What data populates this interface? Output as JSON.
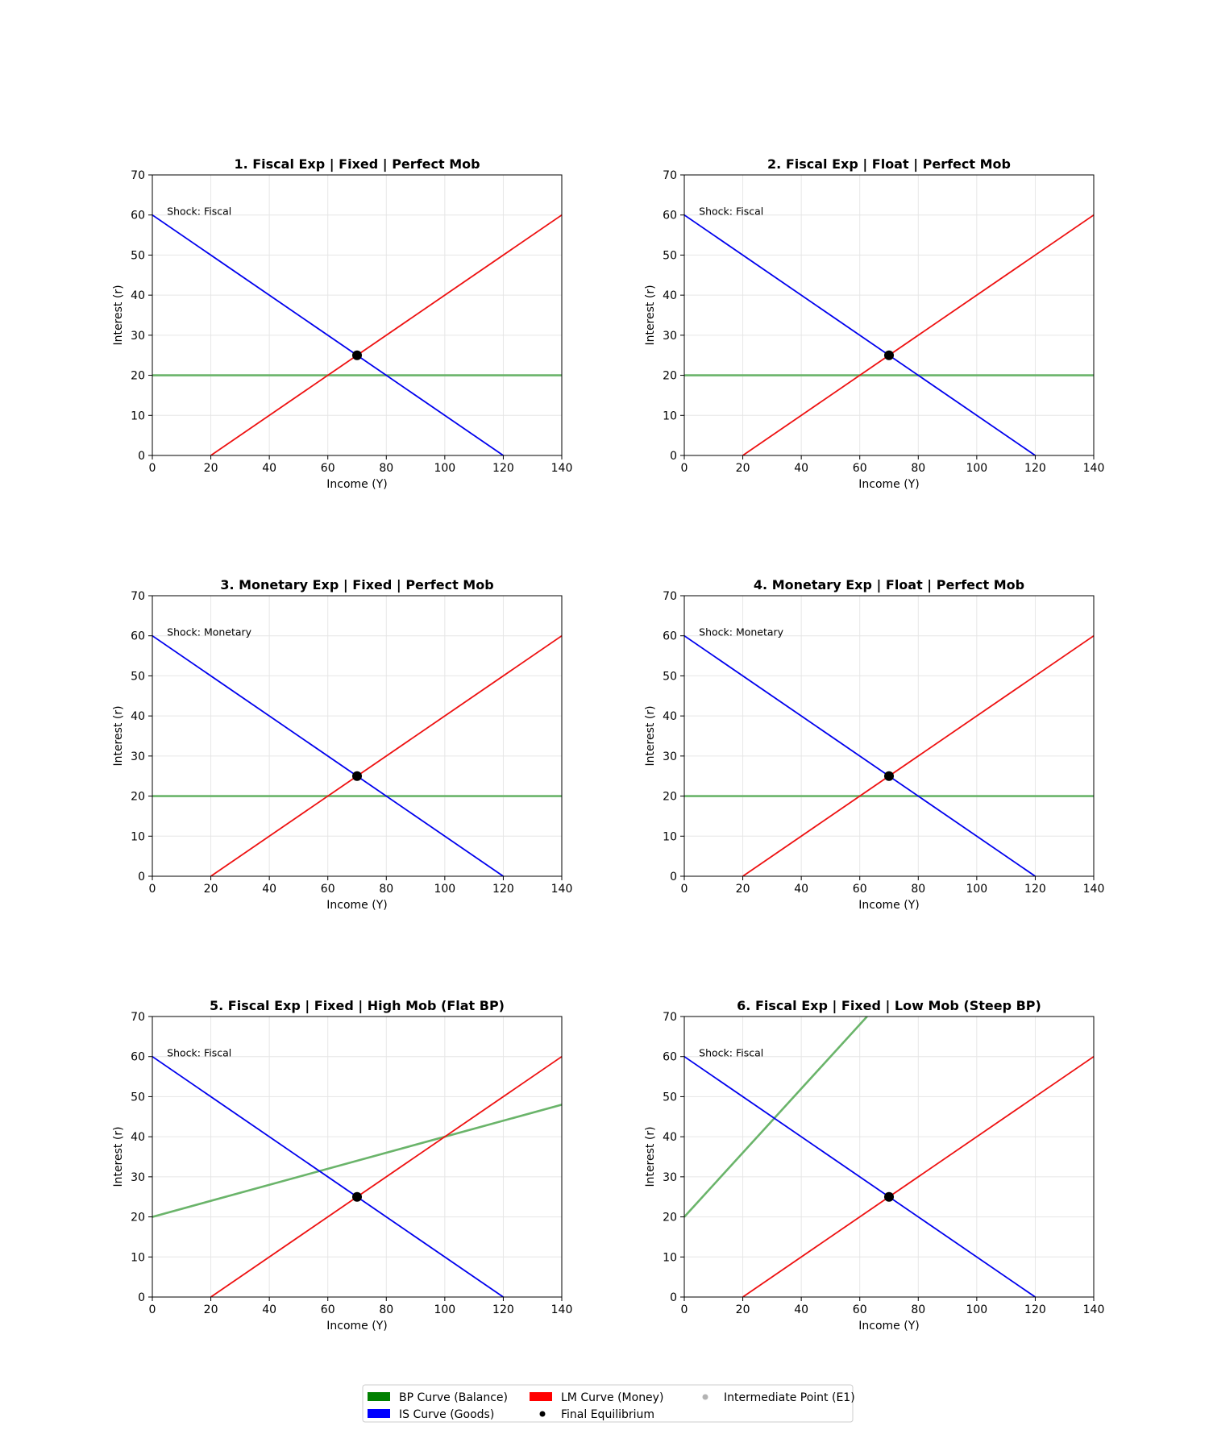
{
  "chart_data": [
    {
      "type": "line",
      "title": "1. Fiscal Exp | Fixed | Perfect Mob",
      "xlabel": "Income (Y)",
      "ylabel": "Interest (r)",
      "xlim": [
        0,
        140
      ],
      "ylim": [
        0,
        70
      ],
      "xticks": [
        0,
        20,
        40,
        60,
        80,
        100,
        120,
        140
      ],
      "yticks": [
        0,
        10,
        20,
        30,
        40,
        50,
        60,
        70
      ],
      "grid": true,
      "annotation": "Shock: Fiscal",
      "series": [
        {
          "name": "BP Curve (Balance)",
          "color": "#6ab46a",
          "x": [
            0,
            140
          ],
          "y": [
            20,
            20
          ]
        },
        {
          "name": "IS Curve (Goods)",
          "color": "#0000ee",
          "x": [
            0,
            120
          ],
          "y": [
            60,
            0
          ]
        },
        {
          "name": "LM Curve (Money)",
          "color": "#ee1111",
          "x": [
            20,
            140
          ],
          "y": [
            0,
            60
          ]
        }
      ],
      "points": [
        {
          "name": "Final Equilibrium",
          "color": "#000000",
          "x": 70,
          "y": 25
        }
      ]
    },
    {
      "type": "line",
      "title": "2. Fiscal Exp | Float | Perfect Mob",
      "xlabel": "Income (Y)",
      "ylabel": "Interest (r)",
      "xlim": [
        0,
        140
      ],
      "ylim": [
        0,
        70
      ],
      "xticks": [
        0,
        20,
        40,
        60,
        80,
        100,
        120,
        140
      ],
      "yticks": [
        0,
        10,
        20,
        30,
        40,
        50,
        60,
        70
      ],
      "grid": true,
      "annotation": "Shock: Fiscal",
      "series": [
        {
          "name": "BP Curve (Balance)",
          "color": "#6ab46a",
          "x": [
            0,
            140
          ],
          "y": [
            20,
            20
          ]
        },
        {
          "name": "IS Curve (Goods)",
          "color": "#0000ee",
          "x": [
            0,
            120
          ],
          "y": [
            60,
            0
          ]
        },
        {
          "name": "LM Curve (Money)",
          "color": "#ee1111",
          "x": [
            20,
            140
          ],
          "y": [
            0,
            60
          ]
        }
      ],
      "points": [
        {
          "name": "Final Equilibrium",
          "color": "#000000",
          "x": 70,
          "y": 25
        }
      ]
    },
    {
      "type": "line",
      "title": "3. Monetary Exp | Fixed | Perfect Mob",
      "xlabel": "Income (Y)",
      "ylabel": "Interest (r)",
      "xlim": [
        0,
        140
      ],
      "ylim": [
        0,
        70
      ],
      "xticks": [
        0,
        20,
        40,
        60,
        80,
        100,
        120,
        140
      ],
      "yticks": [
        0,
        10,
        20,
        30,
        40,
        50,
        60,
        70
      ],
      "grid": true,
      "annotation": "Shock: Monetary",
      "series": [
        {
          "name": "BP Curve (Balance)",
          "color": "#6ab46a",
          "x": [
            0,
            140
          ],
          "y": [
            20,
            20
          ]
        },
        {
          "name": "IS Curve (Goods)",
          "color": "#0000ee",
          "x": [
            0,
            120
          ],
          "y": [
            60,
            0
          ]
        },
        {
          "name": "LM Curve (Money)",
          "color": "#ee1111",
          "x": [
            20,
            140
          ],
          "y": [
            0,
            60
          ]
        }
      ],
      "points": [
        {
          "name": "Final Equilibrium",
          "color": "#000000",
          "x": 70,
          "y": 25
        }
      ]
    },
    {
      "type": "line",
      "title": "4. Monetary Exp | Float | Perfect Mob",
      "xlabel": "Income (Y)",
      "ylabel": "Interest (r)",
      "xlim": [
        0,
        140
      ],
      "ylim": [
        0,
        70
      ],
      "xticks": [
        0,
        20,
        40,
        60,
        80,
        100,
        120,
        140
      ],
      "yticks": [
        0,
        10,
        20,
        30,
        40,
        50,
        60,
        70
      ],
      "grid": true,
      "annotation": "Shock: Monetary",
      "series": [
        {
          "name": "BP Curve (Balance)",
          "color": "#6ab46a",
          "x": [
            0,
            140
          ],
          "y": [
            20,
            20
          ]
        },
        {
          "name": "IS Curve (Goods)",
          "color": "#0000ee",
          "x": [
            0,
            120
          ],
          "y": [
            60,
            0
          ]
        },
        {
          "name": "LM Curve (Money)",
          "color": "#ee1111",
          "x": [
            20,
            140
          ],
          "y": [
            0,
            60
          ]
        }
      ],
      "points": [
        {
          "name": "Final Equilibrium",
          "color": "#000000",
          "x": 70,
          "y": 25
        }
      ]
    },
    {
      "type": "line",
      "title": "5. Fiscal Exp | Fixed | High Mob (Flat BP)",
      "xlabel": "Income (Y)",
      "ylabel": "Interest (r)",
      "xlim": [
        0,
        140
      ],
      "ylim": [
        0,
        70
      ],
      "xticks": [
        0,
        20,
        40,
        60,
        80,
        100,
        120,
        140
      ],
      "yticks": [
        0,
        10,
        20,
        30,
        40,
        50,
        60,
        70
      ],
      "grid": true,
      "annotation": "Shock: Fiscal",
      "series": [
        {
          "name": "BP Curve (Balance)",
          "color": "#6ab46a",
          "x": [
            0,
            140
          ],
          "y": [
            20,
            48
          ]
        },
        {
          "name": "IS Curve (Goods)",
          "color": "#0000ee",
          "x": [
            0,
            120
          ],
          "y": [
            60,
            0
          ]
        },
        {
          "name": "LM Curve (Money)",
          "color": "#ee1111",
          "x": [
            20,
            140
          ],
          "y": [
            0,
            60
          ]
        }
      ],
      "points": [
        {
          "name": "Final Equilibrium",
          "color": "#000000",
          "x": 70,
          "y": 25
        }
      ]
    },
    {
      "type": "line",
      "title": "6. Fiscal Exp | Fixed | Low Mob (Steep BP)",
      "xlabel": "Income (Y)",
      "ylabel": "Interest (r)",
      "xlim": [
        0,
        140
      ],
      "ylim": [
        0,
        70
      ],
      "xticks": [
        0,
        20,
        40,
        60,
        80,
        100,
        120,
        140
      ],
      "yticks": [
        0,
        10,
        20,
        30,
        40,
        50,
        60,
        70
      ],
      "grid": true,
      "annotation": "Shock: Fiscal",
      "series": [
        {
          "name": "BP Curve (Balance)",
          "color": "#6ab46a",
          "x": [
            0,
            62.5
          ],
          "y": [
            20,
            70
          ]
        },
        {
          "name": "IS Curve (Goods)",
          "color": "#0000ee",
          "x": [
            0,
            120
          ],
          "y": [
            60,
            0
          ]
        },
        {
          "name": "LM Curve (Money)",
          "color": "#ee1111",
          "x": [
            20,
            140
          ],
          "y": [
            0,
            60
          ]
        }
      ],
      "points": [
        {
          "name": "Final Equilibrium",
          "color": "#000000",
          "x": 70,
          "y": 25
        }
      ]
    }
  ],
  "legend": {
    "placement": "bottom-center",
    "items": [
      {
        "label": "BP Curve (Balance)",
        "kind": "patch",
        "color": "#008000"
      },
      {
        "label": "IS Curve (Goods)",
        "kind": "patch",
        "color": "#0000ff"
      },
      {
        "label": "LM Curve (Money)",
        "kind": "patch",
        "color": "#ff0000"
      },
      {
        "label": "Final Equilibrium",
        "kind": "dot",
        "color": "#000000"
      },
      {
        "label": "Intermediate Point (E1)",
        "kind": "dot",
        "color": "#b3b3b3"
      }
    ]
  }
}
